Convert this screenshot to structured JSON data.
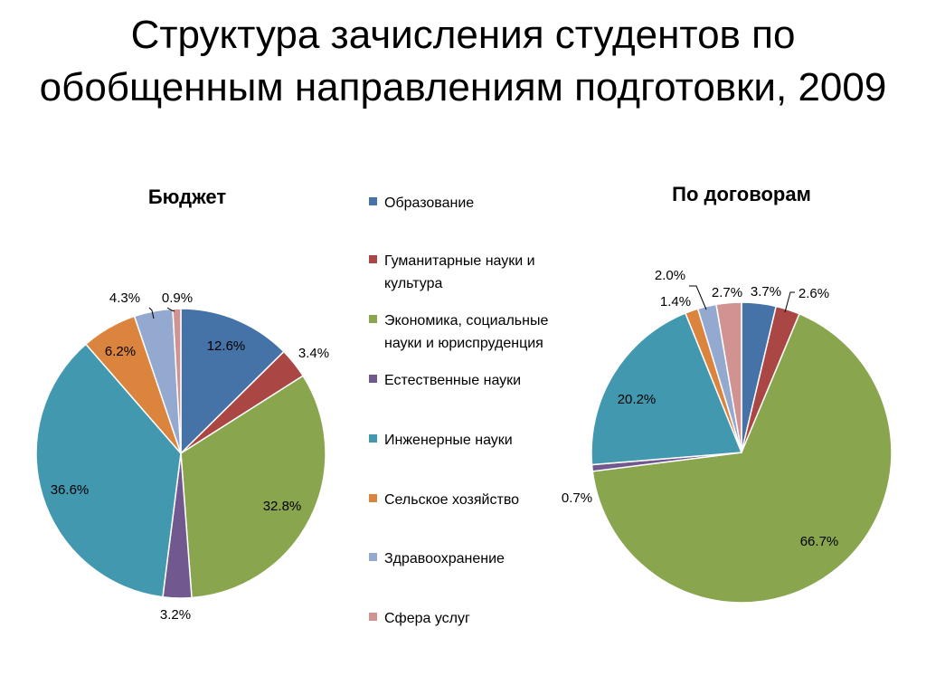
{
  "slide": {
    "title": "Структура зачисления студентов по обобщенным направлениям подготовки, 2009"
  },
  "legend": {
    "items": [
      {
        "label": "Образование",
        "color": "#4572A7"
      },
      {
        "label": "Гуманитарные науки и культура",
        "color": "#AA4643"
      },
      {
        "label": "Экономика, социальные науки и юриспруденция",
        "color": "#89A54E"
      },
      {
        "label": "Естественные науки",
        "color": "#71588F"
      },
      {
        "label": "Инженерные науки",
        "color": "#4198AF"
      },
      {
        "label": "Сельское хозяйство",
        "color": "#DB843D"
      },
      {
        "label": "Здравоохранение",
        "color": "#93A9CF"
      },
      {
        "label": "Сфера услуг",
        "color": "#D19392"
      }
    ]
  },
  "chart_data": [
    {
      "type": "pie",
      "title": "Бюджет",
      "categories": [
        "Образование",
        "Гуманитарные науки и культура",
        "Экономика, социальные науки и юриспруденция",
        "Естественные науки",
        "Инженерные науки",
        "Сельское хозяйство",
        "Здравоохранение",
        "Сфера услуг"
      ],
      "values": [
        12.6,
        3.4,
        32.8,
        3.2,
        36.6,
        6.2,
        4.3,
        0.9
      ],
      "labels": [
        "12.6%",
        "3.4%",
        "32.8%",
        "3.2%",
        "36.6%",
        "6.2%",
        "4.3%",
        "0.9%"
      ],
      "colors": [
        "#4572A7",
        "#AA4643",
        "#89A54E",
        "#71588F",
        "#4198AF",
        "#DB843D",
        "#93A9CF",
        "#D19392"
      ]
    },
    {
      "type": "pie",
      "title": "По договорам",
      "categories": [
        "Образование",
        "Гуманитарные науки и культура",
        "Экономика, социальные науки и юриспруденция",
        "Естественные науки",
        "Инженерные науки",
        "Сельское хозяйство",
        "Здравоохранение",
        "Сфера услуг"
      ],
      "values": [
        3.7,
        2.6,
        66.7,
        0.7,
        20.2,
        1.4,
        2.0,
        2.7
      ],
      "labels": [
        "3.7%",
        "2.6%",
        "66.7%",
        "0.7%",
        "20.2%",
        "1.4%",
        "2.0%",
        "2.7%"
      ],
      "colors": [
        "#4572A7",
        "#AA4643",
        "#89A54E",
        "#71588F",
        "#4198AF",
        "#DB843D",
        "#93A9CF",
        "#D19392"
      ]
    }
  ]
}
